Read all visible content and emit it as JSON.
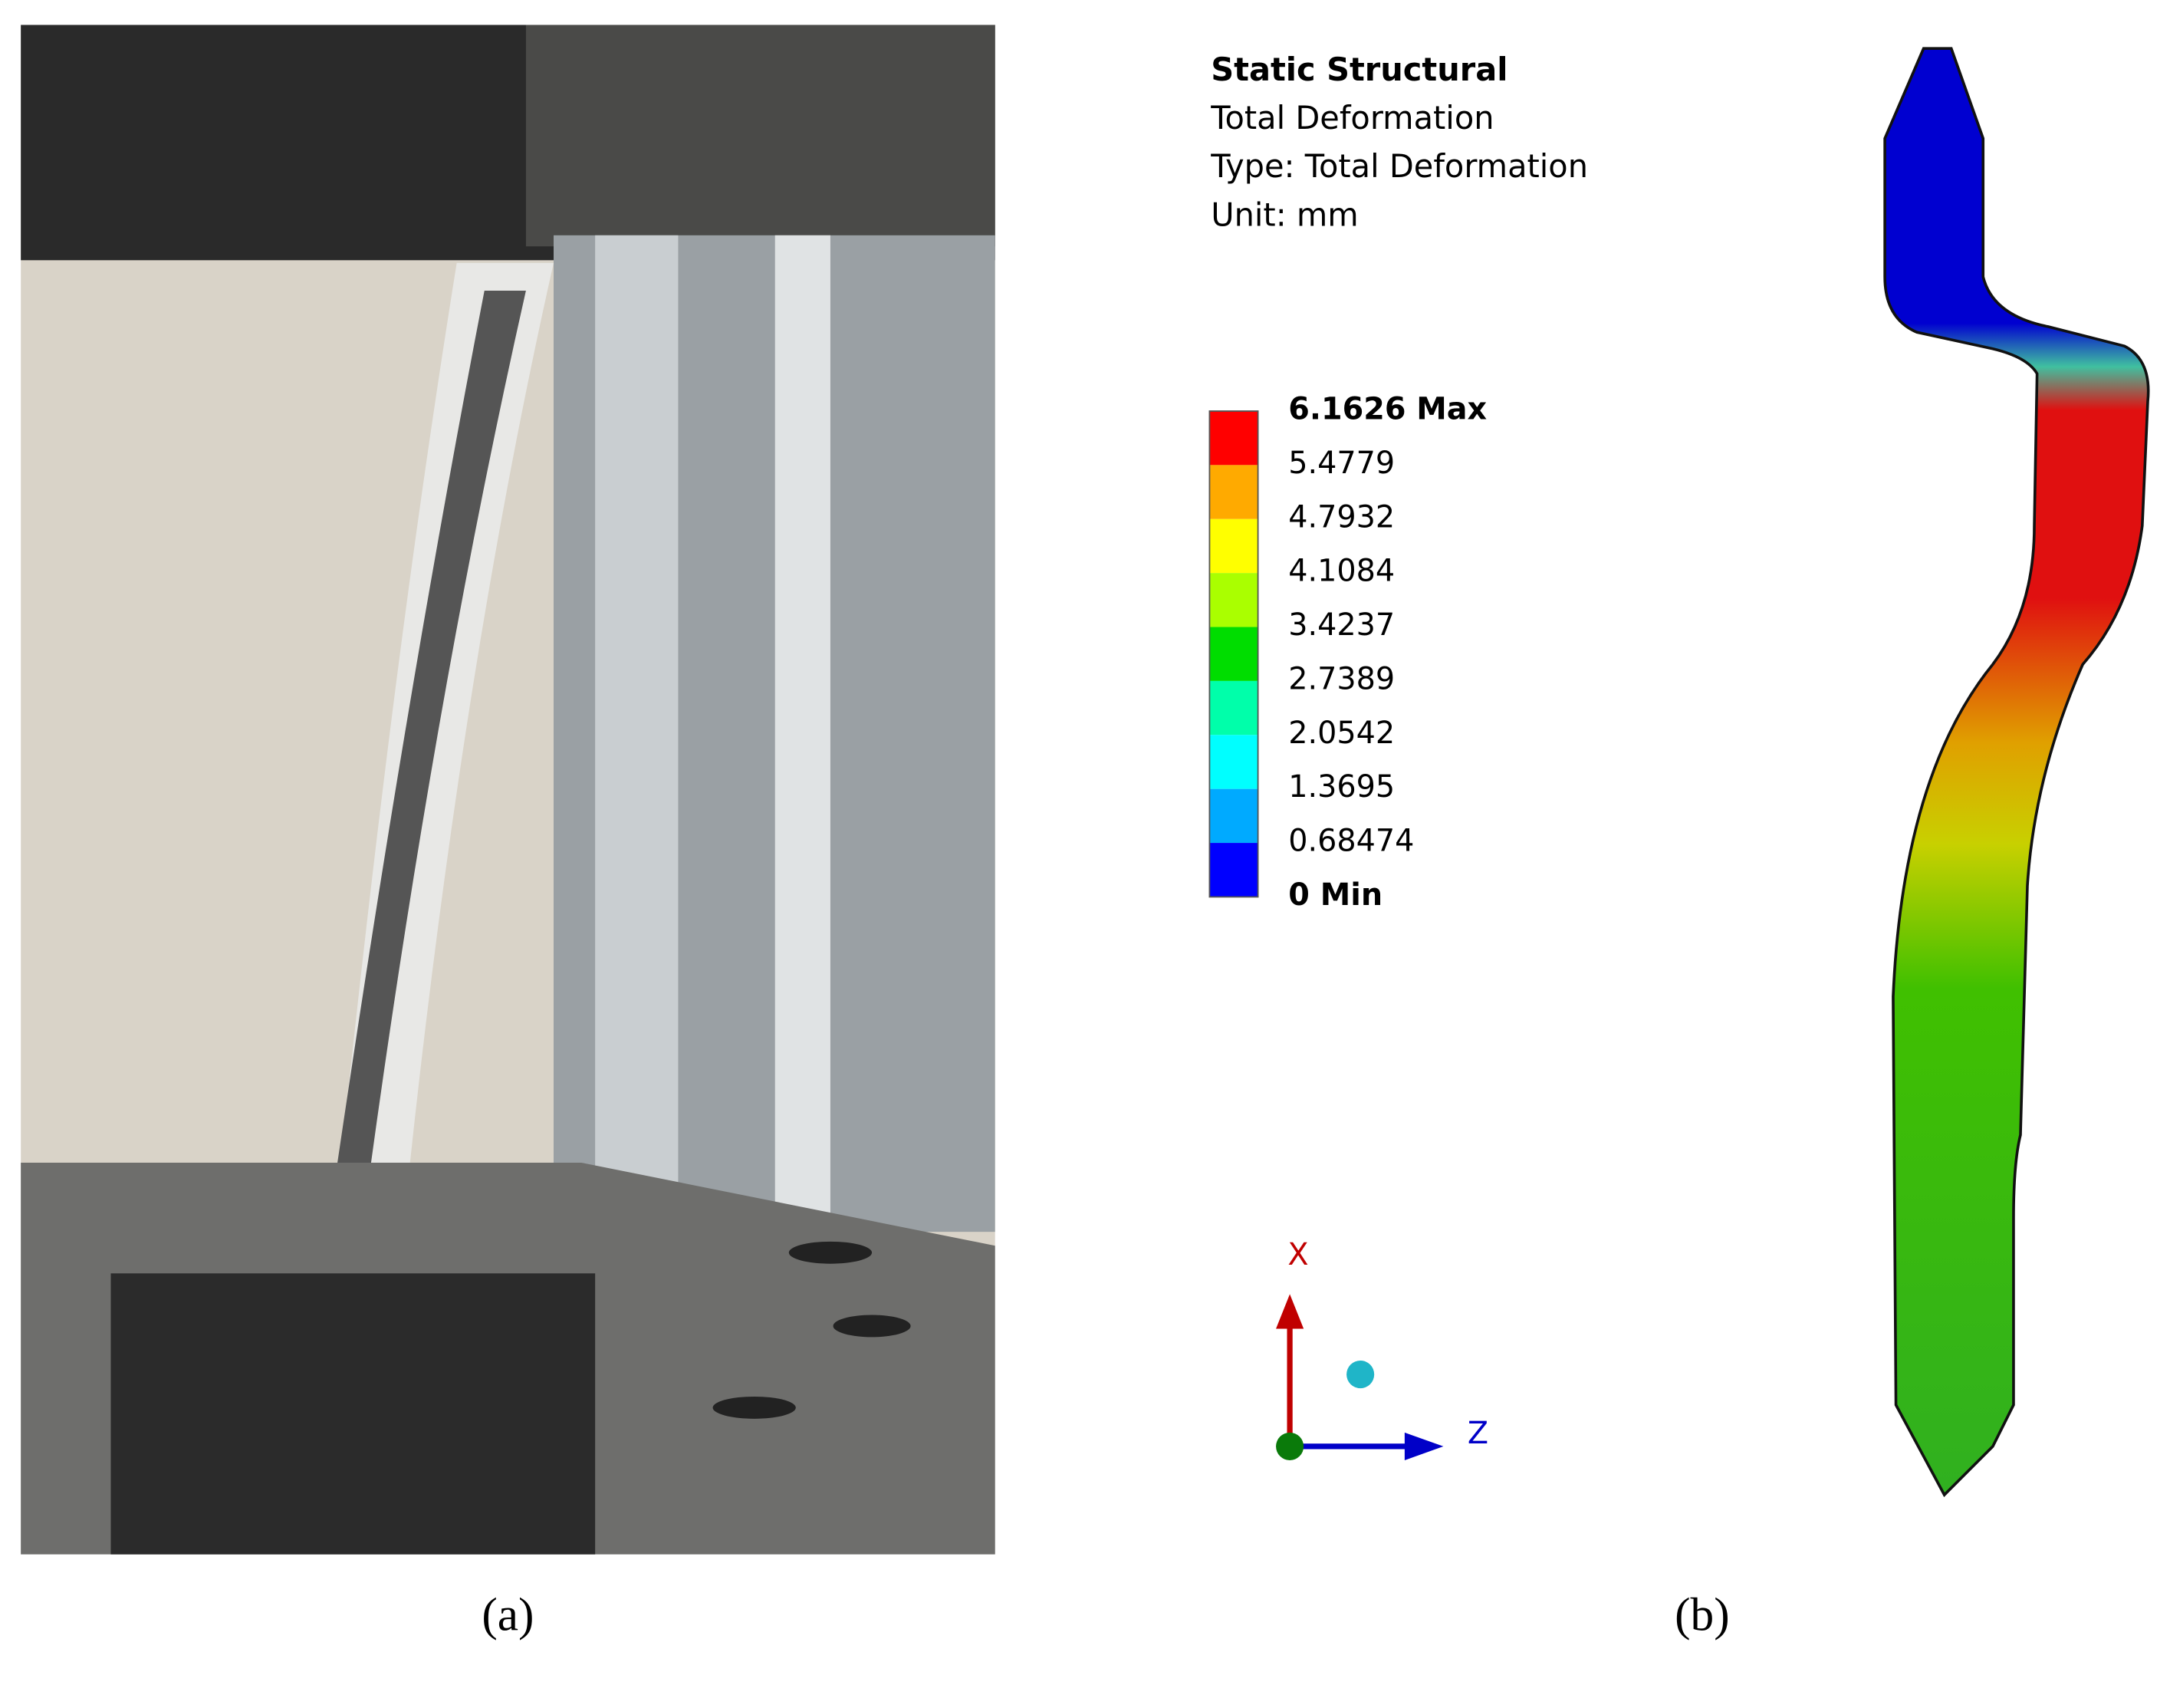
{
  "panels": [
    {
      "label": "(a)"
    },
    {
      "label": "(b)",
      "header": {
        "title": "Static Structural",
        "lines": [
          "Total Deformation",
          "Type: Total Deformation",
          "Unit: mm"
        ]
      },
      "legend": [
        "6.1626 Max",
        "5.4779",
        "4.7932",
        "4.1084",
        "3.4237",
        "2.7389",
        "2.0542",
        "1.3695",
        "0.68474",
        "0 Min"
      ],
      "axes": {
        "x": "X",
        "z": "Z"
      }
    }
  ]
}
